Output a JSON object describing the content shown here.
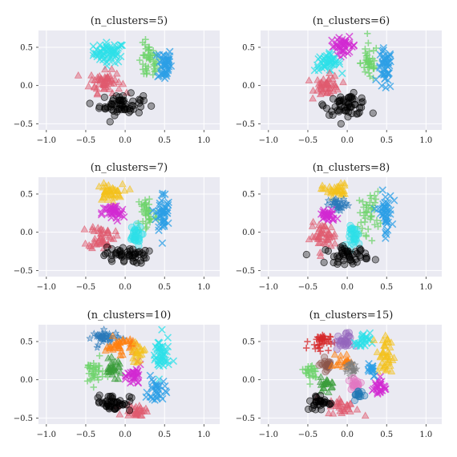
{
  "chart_data": [
    {
      "type": "scatter",
      "title": "(n_clusters=5)",
      "xlim": [
        -1.1,
        1.2
      ],
      "ylim": [
        -0.58,
        0.72
      ],
      "xticks": [
        -1.0,
        -0.5,
        0.0,
        0.5,
        1.0
      ],
      "xtick_labels": [
        "−1.0",
        "−0.5",
        "0.0",
        "0.5",
        "1.0"
      ],
      "yticks": [
        -0.5,
        0.0,
        0.5
      ],
      "ytick_labels": [
        "−0.5",
        "0.0",
        "0.5"
      ],
      "grid": true,
      "clusters": [
        {
          "color": "#2ee0e8",
          "marker": "x",
          "center": [
            -0.2,
            0.43
          ],
          "spread": [
            0.18,
            0.12
          ],
          "n": 60
        },
        {
          "color": "#6dd36b",
          "marker": "+",
          "center": [
            0.3,
            0.3
          ],
          "spread": [
            0.12,
            0.22
          ],
          "n": 45
        },
        {
          "color": "#2c9fe6",
          "marker": "x",
          "center": [
            0.5,
            0.28
          ],
          "spread": [
            0.08,
            0.2
          ],
          "n": 45
        },
        {
          "color": "#e05a6e",
          "marker": "^",
          "center": [
            -0.25,
            0.05
          ],
          "spread": [
            0.18,
            0.13
          ],
          "n": 55
        },
        {
          "color": "#000000",
          "marker": "o",
          "center": [
            -0.05,
            -0.25
          ],
          "spread": [
            0.25,
            0.12
          ],
          "n": 60
        }
      ]
    },
    {
      "type": "scatter",
      "title": "(n_clusters=6)",
      "xlim": [
        -1.1,
        1.2
      ],
      "ylim": [
        -0.58,
        0.72
      ],
      "xticks": [
        -1.0,
        -0.5,
        0.0,
        0.5,
        1.0
      ],
      "xtick_labels": [
        "−1.0",
        "−0.5",
        "0.0",
        "0.5",
        "1.0"
      ],
      "yticks": [
        -0.5,
        0.0,
        0.5
      ],
      "ytick_labels": [
        "−0.5",
        "0.0",
        "0.5"
      ],
      "grid": true,
      "clusters": [
        {
          "color": "#d12ad1",
          "marker": "x",
          "center": [
            -0.05,
            0.52
          ],
          "spread": [
            0.15,
            0.1
          ],
          "n": 40
        },
        {
          "color": "#2ee0e8",
          "marker": "x",
          "center": [
            -0.25,
            0.3
          ],
          "spread": [
            0.15,
            0.1
          ],
          "n": 45
        },
        {
          "color": "#6dd36b",
          "marker": "+",
          "center": [
            0.28,
            0.3
          ],
          "spread": [
            0.1,
            0.22
          ],
          "n": 40
        },
        {
          "color": "#2c9fe6",
          "marker": "x",
          "center": [
            0.48,
            0.2
          ],
          "spread": [
            0.08,
            0.25
          ],
          "n": 45
        },
        {
          "color": "#e05a6e",
          "marker": "^",
          "center": [
            -0.25,
            0.0
          ],
          "spread": [
            0.15,
            0.12
          ],
          "n": 45
        },
        {
          "color": "#000000",
          "marker": "o",
          "center": [
            0.0,
            -0.25
          ],
          "spread": [
            0.25,
            0.12
          ],
          "n": 55
        }
      ]
    },
    {
      "type": "scatter",
      "title": "(n_clusters=7)",
      "xlim": [
        -1.1,
        1.2
      ],
      "ylim": [
        -0.58,
        0.72
      ],
      "xticks": [
        -1.0,
        -0.5,
        0.0,
        0.5,
        1.0
      ],
      "xtick_labels": [
        "−1.0",
        "−0.5",
        "0.0",
        "0.5",
        "1.0"
      ],
      "yticks": [
        -0.5,
        0.0,
        0.5
      ],
      "ytick_labels": [
        "−0.5",
        "0.0",
        "0.5"
      ],
      "grid": true,
      "clusters": [
        {
          "color": "#f4c21b",
          "marker": "^",
          "center": [
            -0.2,
            0.52
          ],
          "spread": [
            0.15,
            0.1
          ],
          "n": 40
        },
        {
          "color": "#d12ad1",
          "marker": "x",
          "center": [
            -0.15,
            0.25
          ],
          "spread": [
            0.13,
            0.1
          ],
          "n": 35
        },
        {
          "color": "#6dd36b",
          "marker": "+",
          "center": [
            0.28,
            0.25
          ],
          "spread": [
            0.12,
            0.25
          ],
          "n": 40
        },
        {
          "color": "#2c9fe6",
          "marker": "x",
          "center": [
            0.48,
            0.25
          ],
          "spread": [
            0.08,
            0.25
          ],
          "n": 45
        },
        {
          "color": "#e05a6e",
          "marker": "^",
          "center": [
            -0.3,
            -0.05
          ],
          "spread": [
            0.15,
            0.15
          ],
          "n": 45
        },
        {
          "color": "#2ee0e8",
          "marker": "o",
          "center": [
            0.12,
            -0.05
          ],
          "spread": [
            0.08,
            0.12
          ],
          "n": 30
        },
        {
          "color": "#000000",
          "marker": "o",
          "center": [
            0.0,
            -0.3
          ],
          "spread": [
            0.25,
            0.1
          ],
          "n": 50
        }
      ]
    },
    {
      "type": "scatter",
      "title": "(n_clusters=8)",
      "xlim": [
        -1.1,
        1.2
      ],
      "ylim": [
        -0.58,
        0.72
      ],
      "xticks": [
        -1.0,
        -0.5,
        0.0,
        0.5,
        1.0
      ],
      "xtick_labels": [
        "−1.0",
        "−0.5",
        "0.0",
        "0.5",
        "1.0"
      ],
      "yticks": [
        -0.5,
        0.0,
        0.5
      ],
      "ytick_labels": [
        "−0.5",
        "0.0",
        "0.5"
      ],
      "grid": true,
      "clusters": [
        {
          "color": "#f4c21b",
          "marker": "^",
          "center": [
            -0.15,
            0.55
          ],
          "spread": [
            0.15,
            0.08
          ],
          "n": 35
        },
        {
          "color": "#2a79b9",
          "marker": "*",
          "center": [
            -0.1,
            0.35
          ],
          "spread": [
            0.12,
            0.08
          ],
          "n": 30
        },
        {
          "color": "#d12ad1",
          "marker": "x",
          "center": [
            -0.25,
            0.22
          ],
          "spread": [
            0.1,
            0.08
          ],
          "n": 30
        },
        {
          "color": "#6dd36b",
          "marker": "+",
          "center": [
            0.28,
            0.25
          ],
          "spread": [
            0.12,
            0.25
          ],
          "n": 40
        },
        {
          "color": "#2c9fe6",
          "marker": "x",
          "center": [
            0.48,
            0.25
          ],
          "spread": [
            0.08,
            0.25
          ],
          "n": 45
        },
        {
          "color": "#e05a6e",
          "marker": "^",
          "center": [
            -0.3,
            -0.05
          ],
          "spread": [
            0.15,
            0.15
          ],
          "n": 45
        },
        {
          "color": "#2ee0e8",
          "marker": "o",
          "center": [
            0.1,
            -0.05
          ],
          "spread": [
            0.08,
            0.12
          ],
          "n": 30
        },
        {
          "color": "#000000",
          "marker": "o",
          "center": [
            0.0,
            -0.3
          ],
          "spread": [
            0.25,
            0.1
          ],
          "n": 50
        }
      ]
    },
    {
      "type": "scatter",
      "title": "(n_clusters=10)",
      "xlim": [
        -1.1,
        1.2
      ],
      "ylim": [
        -0.58,
        0.72
      ],
      "xticks": [
        -1.0,
        -0.5,
        0.0,
        0.5,
        1.0
      ],
      "xtick_labels": [
        "−1.0",
        "−0.5",
        "0.0",
        "0.5",
        "1.0"
      ],
      "yticks": [
        -0.5,
        0.0,
        0.5
      ],
      "ytick_labels": [
        "−0.5",
        "0.0",
        "0.5"
      ],
      "grid": true,
      "clusters": [
        {
          "color": "#2a79b9",
          "marker": "*",
          "center": [
            -0.25,
            0.55
          ],
          "spread": [
            0.15,
            0.08
          ],
          "n": 40
        },
        {
          "color": "#ff7f0e",
          "marker": "^",
          "center": [
            -0.05,
            0.45
          ],
          "spread": [
            0.18,
            0.1
          ],
          "n": 40
        },
        {
          "color": "#6dd36b",
          "marker": "+",
          "center": [
            -0.4,
            0.1
          ],
          "spread": [
            0.12,
            0.15
          ],
          "n": 35
        },
        {
          "color": "#3a9d3a",
          "marker": "^",
          "center": [
            -0.15,
            0.15
          ],
          "spread": [
            0.1,
            0.1
          ],
          "n": 30
        },
        {
          "color": "#d12ad1",
          "marker": "x",
          "center": [
            0.12,
            0.05
          ],
          "spread": [
            0.08,
            0.12
          ],
          "n": 30
        },
        {
          "color": "#2ee0e8",
          "marker": "x",
          "center": [
            0.45,
            0.3
          ],
          "spread": [
            0.1,
            0.25
          ],
          "n": 45
        },
        {
          "color": "#2c9fe6",
          "marker": "x",
          "center": [
            0.4,
            -0.15
          ],
          "spread": [
            0.1,
            0.15
          ],
          "n": 30
        },
        {
          "color": "#f4c21b",
          "marker": "^",
          "center": [
            0.15,
            0.35
          ],
          "spread": [
            0.08,
            0.1
          ],
          "n": 20
        },
        {
          "color": "#e05a6e",
          "marker": "^",
          "center": [
            0.15,
            -0.4
          ],
          "spread": [
            0.15,
            0.08
          ],
          "n": 30
        },
        {
          "color": "#000000",
          "marker": "o",
          "center": [
            -0.15,
            -0.3
          ],
          "spread": [
            0.2,
            0.1
          ],
          "n": 45
        }
      ]
    },
    {
      "type": "scatter",
      "title": "(n_clusters=15)",
      "xlim": [
        -1.1,
        1.2
      ],
      "ylim": [
        -0.58,
        0.72
      ],
      "xticks": [
        -1.0,
        -0.5,
        0.0,
        0.5,
        1.0
      ],
      "xtick_labels": [
        "−1.0",
        "−0.5",
        "0.0",
        "0.5",
        "1.0"
      ],
      "yticks": [
        -0.5,
        0.0,
        0.5
      ],
      "ytick_labels": [
        "−0.5",
        "0.0",
        "0.5"
      ],
      "grid": true,
      "clusters": [
        {
          "color": "#d62728",
          "marker": "+",
          "center": [
            -0.35,
            0.5
          ],
          "spread": [
            0.12,
            0.1
          ],
          "n": 35
        },
        {
          "color": "#9467bd",
          "marker": "o",
          "center": [
            -0.05,
            0.5
          ],
          "spread": [
            0.1,
            0.1
          ],
          "n": 30
        },
        {
          "color": "#2ee0e8",
          "marker": "x",
          "center": [
            0.2,
            0.5
          ],
          "spread": [
            0.08,
            0.1
          ],
          "n": 25
        },
        {
          "color": "#f4c21b",
          "marker": "^",
          "center": [
            0.48,
            0.3
          ],
          "spread": [
            0.1,
            0.25
          ],
          "n": 40
        },
        {
          "color": "#8c564b",
          "marker": "o",
          "center": [
            -0.25,
            0.2
          ],
          "spread": [
            0.08,
            0.08
          ],
          "n": 20
        },
        {
          "color": "#ff7f0e",
          "marker": "^",
          "center": [
            -0.05,
            0.25
          ],
          "spread": [
            0.08,
            0.08
          ],
          "n": 20
        },
        {
          "color": "#7f7f7f",
          "marker": "*",
          "center": [
            0.05,
            0.15
          ],
          "spread": [
            0.07,
            0.08
          ],
          "n": 20
        },
        {
          "color": "#d12ad1",
          "marker": "x",
          "center": [
            0.4,
            -0.1
          ],
          "spread": [
            0.08,
            0.12
          ],
          "n": 25
        },
        {
          "color": "#6dd36b",
          "marker": "+",
          "center": [
            -0.45,
            0.1
          ],
          "spread": [
            0.08,
            0.12
          ],
          "n": 25
        },
        {
          "color": "#2c9fe6",
          "marker": "x",
          "center": [
            0.3,
            0.15
          ],
          "spread": [
            0.06,
            0.1
          ],
          "n": 15
        },
        {
          "color": "#e377c2",
          "marker": "o",
          "center": [
            0.1,
            -0.05
          ],
          "spread": [
            0.08,
            0.08
          ],
          "n": 20
        },
        {
          "color": "#3a9d3a",
          "marker": "^",
          "center": [
            -0.25,
            -0.05
          ],
          "spread": [
            0.08,
            0.08
          ],
          "n": 20
        },
        {
          "color": "#1f77b4",
          "marker": "o",
          "center": [
            0.15,
            -0.2
          ],
          "spread": [
            0.06,
            0.06
          ],
          "n": 15
        },
        {
          "color": "#e05a6e",
          "marker": "^",
          "center": [
            -0.05,
            -0.35
          ],
          "spread": [
            0.18,
            0.1
          ],
          "n": 30
        },
        {
          "color": "#000000",
          "marker": "o",
          "center": [
            -0.35,
            -0.3
          ],
          "spread": [
            0.15,
            0.1
          ],
          "n": 30
        }
      ]
    }
  ]
}
